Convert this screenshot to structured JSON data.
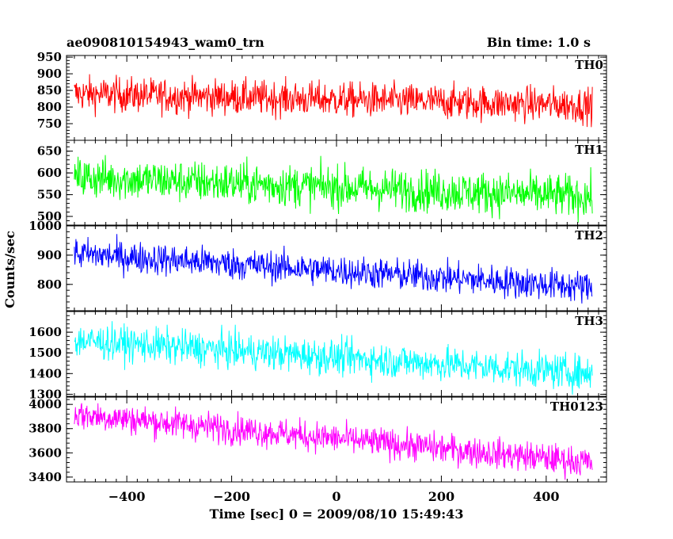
{
  "chart_data": {
    "type": "line",
    "title": "ae090810154943_wam0_trn",
    "subtitle": "Bin time: 1.0 s",
    "xlabel": "Time [sec] 0 = 2009/08/10 15:49:43",
    "ylabel": "Counts/sec",
    "xlim": [
      -515,
      515
    ],
    "x_ticks": [
      -400,
      -200,
      0,
      200,
      400
    ],
    "x_range": [
      -500,
      488
    ],
    "grid": false,
    "panels": [
      {
        "name": "TH0",
        "color": "#ff0000",
        "ylim": [
          700,
          955
        ],
        "y_ticks": [
          750,
          800,
          850,
          900,
          950
        ],
        "trend_start": 840,
        "trend_end": 805,
        "noise": 26
      },
      {
        "name": "TH1",
        "color": "#00ff00",
        "ylim": [
          480,
          675
        ],
        "y_ticks": [
          500,
          550,
          600,
          650
        ],
        "trend_start": 590,
        "trend_end": 545,
        "noise": 24
      },
      {
        "name": "TH2",
        "color": "#0000ff",
        "ylim": [
          710,
          1000
        ],
        "y_ticks": [
          800,
          900,
          1000
        ],
        "trend_start": 905,
        "trend_end": 790,
        "noise": 27
      },
      {
        "name": "TH3",
        "color": "#00ffff",
        "ylim": [
          1290,
          1700
        ],
        "y_ticks": [
          1300,
          1400,
          1500,
          1600
        ],
        "trend_start": 1560,
        "trend_end": 1400,
        "noise": 42
      },
      {
        "name": "TH0123",
        "color": "#ff00ff",
        "ylim": [
          3360,
          4060
        ],
        "y_ticks": [
          3400,
          3600,
          3800,
          4000
        ],
        "trend_start": 3920,
        "trend_end": 3520,
        "noise": 62
      }
    ]
  }
}
